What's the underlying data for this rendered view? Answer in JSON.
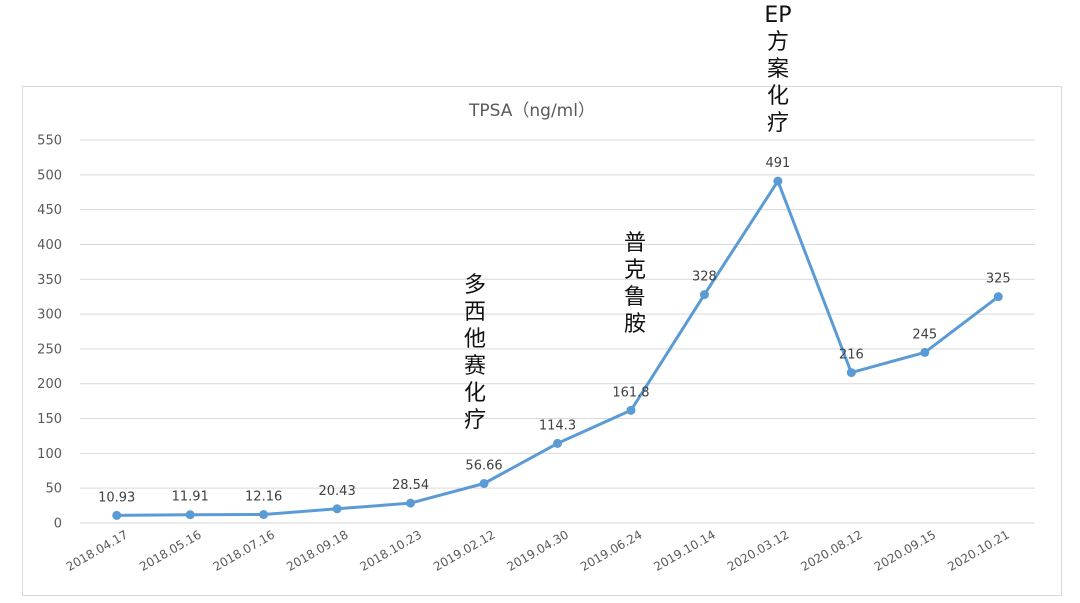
{
  "chart_data": {
    "type": "line",
    "title": "TPSA（ng/ml）",
    "xlabel": "",
    "ylabel": "",
    "categories": [
      "2018.04.17",
      "2018.05.16",
      "2018.07.16",
      "2018.09.18",
      "2018.10.23",
      "2019.02.12",
      "2019.04.30",
      "2019.06.24",
      "2019.10.14",
      "2020.03.12",
      "2020.08.12",
      "2020.09.15",
      "2020.10.21"
    ],
    "series": [
      {
        "values": [
          10.93,
          11.91,
          12.16,
          20.43,
          28.54,
          56.66,
          114.3,
          161.8,
          328,
          491,
          216,
          245,
          325
        ],
        "data_labels": [
          "10.93",
          "11.91",
          "12.16",
          "20.43",
          "28.54",
          "56.66",
          "114.3",
          "161.8",
          "328",
          "491",
          "216",
          "245",
          "325"
        ]
      }
    ],
    "ylim": [
      0,
      550
    ],
    "yticks": [
      0,
      50,
      100,
      150,
      200,
      250,
      300,
      350,
      400,
      450,
      500,
      550
    ],
    "grid": true,
    "line_color": "#5b9bd5",
    "annotations": [
      {
        "text": "多西他赛化疗",
        "category": "2019.02.12"
      },
      {
        "text": "普克鲁胺",
        "category": "2019.06.24"
      },
      {
        "text": "EP方案化疗",
        "category": "2020.03.12"
      }
    ]
  }
}
